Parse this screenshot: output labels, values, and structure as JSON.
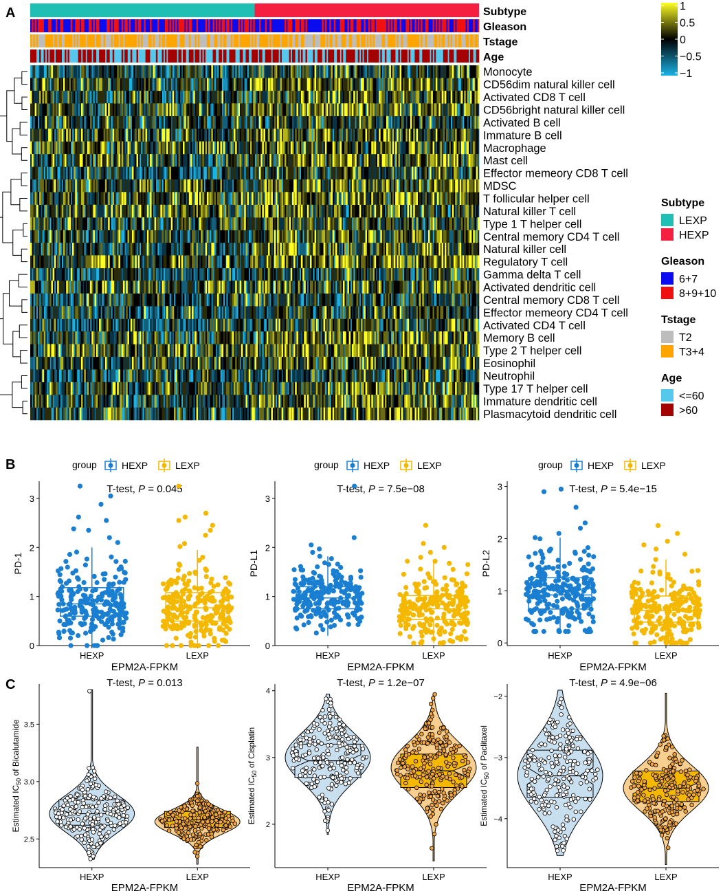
{
  "panel_letters": [
    "A",
    "B",
    "C"
  ],
  "colors": {
    "lexp": "#1fc0b3",
    "hexp": "#f5203f",
    "gleason_low": "#0b0bf0",
    "gleason_high": "#f01010",
    "tstage_t2": "#bdbdbd",
    "tstage_t34": "#ffa500",
    "age_young": "#55c8ec",
    "age_old": "#a50000",
    "box_hexp": "#1a7fd1",
    "box_lexp": "#f4b800",
    "violin_hexp": "#c7dfef",
    "violin_lexp": "#f8cf8e",
    "heat_low": "#1ab3e6",
    "heat_mid": "#000000",
    "heat_high": "#ffff22"
  },
  "chart_data": [
    {
      "panel": "A",
      "type": "heatmap",
      "annotation_tracks": [
        "Subtype",
        "Gleason",
        "Tstage",
        "Age"
      ],
      "rows": [
        "Monocyte",
        "CD56dim natural killer cell",
        "Activated CD8 T cell",
        "CD56bright natural killer cell",
        "Activated B cell",
        "Immature  B cell",
        "Macrophage",
        "Mast cell",
        "Effector memeory CD8 T cell",
        "MDSC",
        "T follicular helper cell",
        "Natural killer T cell",
        "Type 1 T helper cell",
        "Central memory CD4 T cell",
        "Natural killer cell",
        "Regulatory T cell",
        "Gamma delta T cell",
        "Activated dendritic cell",
        "Central memory CD8 T cell",
        "Effector memeory CD4 T cell",
        "Activated CD4 T cell",
        "Memory B cell",
        "Type 2 T helper cell",
        "Eosinophil",
        "Neutrophil",
        "Type 17 T helper cell",
        "Immature dendritic cell",
        "Plasmacytoid dendritic cell"
      ],
      "color_scale": {
        "min": -1,
        "max": 1,
        "ticks": [
          "1",
          "0.5",
          "0",
          "−0.5",
          "−1"
        ]
      },
      "groups": [
        {
          "name": "LEXP",
          "fraction": 0.5
        },
        {
          "name": "HEXP",
          "fraction": 0.5
        }
      ],
      "legends": [
        {
          "title": "Subtype",
          "entries": [
            "LEXP",
            "HEXP"
          ]
        },
        {
          "title": "Gleason",
          "entries": [
            "6+7",
            "8+9+10"
          ]
        },
        {
          "title": "Tstage",
          "entries": [
            "T2",
            "T3+4"
          ]
        },
        {
          "title": "Age",
          "entries": [
            "<=60",
            ">60"
          ]
        }
      ]
    },
    {
      "panel": "B",
      "type": "box",
      "legend_title": "group",
      "legend_entries": [
        "HEXP",
        "LEXP"
      ],
      "stat": {
        "prefix": "T-test, ",
        "p_label": "P",
        "p_value": "= 0.045"
      },
      "xlabel": "EPM2A-FPKM",
      "ylabel": "PD-1",
      "categories": [
        "HEXP",
        "LEXP"
      ],
      "ylim": [
        0,
        3.35
      ],
      "yticks": [
        "0",
        "1",
        "2",
        "3"
      ],
      "series": [
        {
          "name": "HEXP",
          "q1": 0.6,
          "median": 0.85,
          "q3": 1.18,
          "whisker_low": 0.0,
          "whisker_high": 2.0,
          "outliers": [
            2.1,
            2.2,
            2.35,
            2.38,
            2.55,
            2.62,
            2.88,
            3.05,
            3.25
          ],
          "range": [
            0.0,
            2.0
          ]
        },
        {
          "name": "LEXP",
          "q1": 0.5,
          "median": 0.77,
          "q3": 1.08,
          "whisker_low": 0.0,
          "whisker_high": 1.95,
          "outliers": [
            2.02,
            2.08,
            2.25,
            2.35,
            2.45,
            2.55,
            2.62,
            2.7,
            3.25
          ],
          "range": [
            0.0,
            1.95
          ]
        }
      ]
    },
    {
      "panel": "B",
      "type": "box",
      "legend_title": "group",
      "legend_entries": [
        "HEXP",
        "LEXP"
      ],
      "stat": {
        "prefix": "T-test, ",
        "p_label": "P",
        "p_value": "= 7.5e−08"
      },
      "xlabel": "EPM2A-FPKM",
      "ylabel": "PD-L1",
      "categories": [
        "HEXP",
        "LEXP"
      ],
      "ylim": [
        0,
        3.35
      ],
      "yticks": [
        "0",
        "1",
        "2",
        "3"
      ],
      "series": [
        {
          "name": "HEXP",
          "q1": 0.75,
          "median": 0.97,
          "q3": 1.2,
          "whisker_low": 0.2,
          "whisker_high": 1.82,
          "outliers": [
            1.9,
            1.97,
            2.05,
            2.2,
            3.25
          ],
          "range": [
            0.2,
            1.82
          ]
        },
        {
          "name": "LEXP",
          "q1": 0.53,
          "median": 0.75,
          "q3": 1.02,
          "whisker_low": 0.05,
          "whisker_high": 1.72,
          "outliers": [
            1.8,
            1.9,
            2.0,
            2.08,
            2.45
          ],
          "range": [
            0.05,
            1.72
          ]
        }
      ]
    },
    {
      "panel": "B",
      "type": "box",
      "legend_title": "group",
      "legend_entries": [
        "HEXP",
        "LEXP"
      ],
      "stat": {
        "prefix": "T-test, ",
        "p_label": "P",
        "p_value": "= 5.4e−15"
      },
      "xlabel": "EPM2A-FPKM",
      "ylabel": "PD-L2",
      "categories": [
        "HEXP",
        "LEXP"
      ],
      "ylim": [
        -0.05,
        3.1
      ],
      "yticks": [
        "0",
        "1",
        "2",
        "3"
      ],
      "series": [
        {
          "name": "HEXP",
          "q1": 0.65,
          "median": 0.92,
          "q3": 1.25,
          "whisker_low": 0.22,
          "whisker_high": 2.02,
          "outliers": [
            2.1,
            2.2,
            2.3,
            2.6,
            2.9,
            2.95
          ],
          "range": [
            0.22,
            2.02
          ]
        },
        {
          "name": "LEXP",
          "q1": 0.4,
          "median": 0.62,
          "q3": 0.9,
          "whisker_low": 0.0,
          "whisker_high": 1.6,
          "outliers": [
            1.7,
            1.8,
            1.88,
            1.95,
            2.1,
            2.25
          ],
          "range": [
            0.0,
            1.6
          ]
        }
      ]
    },
    {
      "panel": "C",
      "type": "violin",
      "stat": {
        "prefix": "T-test, ",
        "p_label": "P",
        "p_value": "= 0.013"
      },
      "xlabel": "EPM2A-FPKM",
      "ylabel_prefix": "Estimated IC",
      "ylabel_sub": "50",
      "ylabel_suffix": " of Bicalutamide",
      "categories": [
        "HEXP",
        "LEXP"
      ],
      "ylim": [
        2.25,
        3.85
      ],
      "yticks": [
        2.5,
        3.0,
        3.5
      ],
      "ytick_labels": [
        "2.5",
        "3.0",
        "3.5"
      ],
      "series": [
        {
          "name": "HEXP",
          "q1": 2.62,
          "median": 2.72,
          "q3": 2.84,
          "whisker_low": 2.32,
          "whisker_high": 3.8,
          "mode": 2.72,
          "range": [
            2.32,
            3.8
          ]
        },
        {
          "name": "LEXP",
          "q1": 2.6,
          "median": 2.67,
          "q3": 2.74,
          "whisker_low": 2.28,
          "whisker_high": 3.3,
          "mode": 2.65,
          "range": [
            2.28,
            3.3
          ]
        }
      ]
    },
    {
      "panel": "C",
      "type": "violin",
      "stat": {
        "prefix": "T-test, ",
        "p_label": "P",
        "p_value": "= 1.2e−07"
      },
      "xlabel": "EPM2A-FPKM",
      "ylabel_prefix": "Estimated IC",
      "ylabel_sub": "50",
      "ylabel_suffix": " of Cisplatin",
      "categories": [
        "HEXP",
        "LEXP"
      ],
      "ylim": [
        1.35,
        4.1
      ],
      "yticks": [
        2,
        3,
        4
      ],
      "ytick_labels": [
        "2",
        "3",
        "4"
      ],
      "series": [
        {
          "name": "HEXP",
          "q1": 2.7,
          "median": 2.95,
          "q3": 3.2,
          "whisker_low": 1.85,
          "whisker_high": 3.95,
          "mode": 3.0,
          "range": [
            1.85,
            3.95
          ]
        },
        {
          "name": "LEXP",
          "q1": 2.55,
          "median": 2.8,
          "q3": 3.05,
          "whisker_low": 1.45,
          "whisker_high": 3.95,
          "mode": 2.85,
          "range": [
            1.45,
            3.95
          ]
        }
      ]
    },
    {
      "panel": "C",
      "type": "violin",
      "stat": {
        "prefix": "T-test, ",
        "p_label": "P",
        "p_value": "= 4.9e−06"
      },
      "xlabel": "EPM2A-FPKM",
      "ylabel_prefix": "Estimated IC",
      "ylabel_sub": "50",
      "ylabel_suffix": " of Paclitaxel",
      "categories": [
        "HEXP",
        "LEXP"
      ],
      "ylim": [
        -4.8,
        -1.8
      ],
      "yticks": [
        -4,
        -3,
        -2
      ],
      "ytick_labels": [
        "−4",
        "−3",
        "−2"
      ],
      "series": [
        {
          "name": "HEXP",
          "q1": -3.65,
          "median": -3.3,
          "q3": -2.88,
          "whisker_low": -4.6,
          "whisker_high": -1.9,
          "mode": -3.3,
          "range": [
            -4.6,
            -1.9
          ]
        },
        {
          "name": "LEXP",
          "q1": -3.72,
          "median": -3.5,
          "q3": -3.22,
          "whisker_low": -4.75,
          "whisker_high": -1.95,
          "mode": -3.5,
          "range": [
            -4.75,
            -1.95
          ]
        }
      ]
    }
  ]
}
